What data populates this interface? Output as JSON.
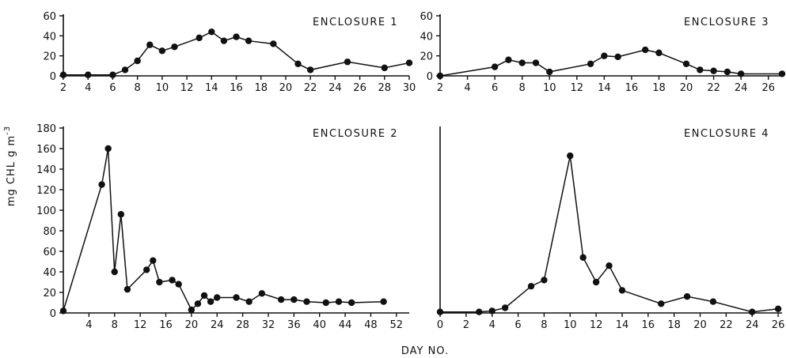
{
  "chart_data": {
    "type": "line",
    "xlabel": "DAY NO.",
    "ylabel": "mg CHL g m-3",
    "ylabel_parts": {
      "main": "mg CHL g m",
      "exp": "-3"
    },
    "panels": [
      {
        "label": "ENCLOSURE 1",
        "xlim": [
          2,
          30
        ],
        "xticks": [
          2,
          4,
          6,
          8,
          10,
          12,
          14,
          16,
          18,
          20,
          22,
          24,
          26,
          28,
          30
        ],
        "ylim": [
          0,
          60
        ],
        "yticks": [
          0,
          20,
          40,
          60
        ],
        "x": [
          2,
          4,
          6,
          7,
          8,
          9,
          10,
          11,
          13,
          14,
          15,
          16,
          17,
          19,
          21,
          22,
          25,
          28,
          30
        ],
        "y": [
          1,
          1,
          1,
          6,
          15,
          31,
          25,
          29,
          38,
          44,
          35,
          39,
          35,
          32,
          12,
          6,
          14,
          8,
          13
        ]
      },
      {
        "label": "ENCLOSURE 3",
        "xlim": [
          2,
          27
        ],
        "xticks": [
          2,
          4,
          6,
          8,
          10,
          12,
          14,
          16,
          18,
          20,
          22,
          24,
          26
        ],
        "ylim": [
          0,
          60
        ],
        "yticks": [
          0,
          20,
          40,
          60
        ],
        "x": [
          2,
          6,
          7,
          8,
          9,
          10,
          13,
          14,
          15,
          17,
          18,
          20,
          21,
          22,
          23,
          24,
          27
        ],
        "y": [
          0,
          9,
          16,
          13,
          13,
          4,
          12,
          20,
          19,
          26,
          23,
          12,
          6,
          5,
          4,
          2,
          2
        ]
      },
      {
        "label": "ENCLOSURE 2",
        "xlim": [
          0,
          54
        ],
        "xticks": [
          4,
          8,
          12,
          16,
          20,
          24,
          28,
          32,
          36,
          40,
          44,
          48,
          52
        ],
        "ylim": [
          0,
          180
        ],
        "yticks": [
          0,
          20,
          40,
          60,
          80,
          100,
          120,
          140,
          160,
          180
        ],
        "x": [
          0,
          6,
          7,
          8,
          9,
          10,
          13,
          14,
          15,
          17,
          18,
          20,
          21,
          22,
          23,
          24,
          27,
          29,
          31,
          34,
          36,
          38,
          41,
          43,
          45,
          50
        ],
        "y": [
          2,
          125,
          160,
          40,
          96,
          23,
          42,
          51,
          30,
          32,
          28,
          3,
          9,
          17,
          11,
          15,
          15,
          11,
          19,
          13,
          13,
          11,
          10,
          11,
          10,
          11
        ]
      },
      {
        "label": "ENCLOSURE 4",
        "xlim": [
          0,
          26.3
        ],
        "xticks": [
          0,
          2,
          4,
          6,
          8,
          10,
          12,
          14,
          16,
          18,
          20,
          22,
          24,
          26
        ],
        "ylim": [
          0,
          180
        ],
        "yticks": [],
        "x": [
          0,
          3,
          4,
          5,
          7,
          8,
          10,
          11,
          12,
          13,
          14,
          17,
          19,
          21,
          24,
          26
        ],
        "y": [
          1,
          1,
          2,
          5,
          26,
          32,
          153,
          54,
          30,
          46,
          22,
          9,
          16,
          11,
          1,
          4
        ]
      }
    ]
  }
}
